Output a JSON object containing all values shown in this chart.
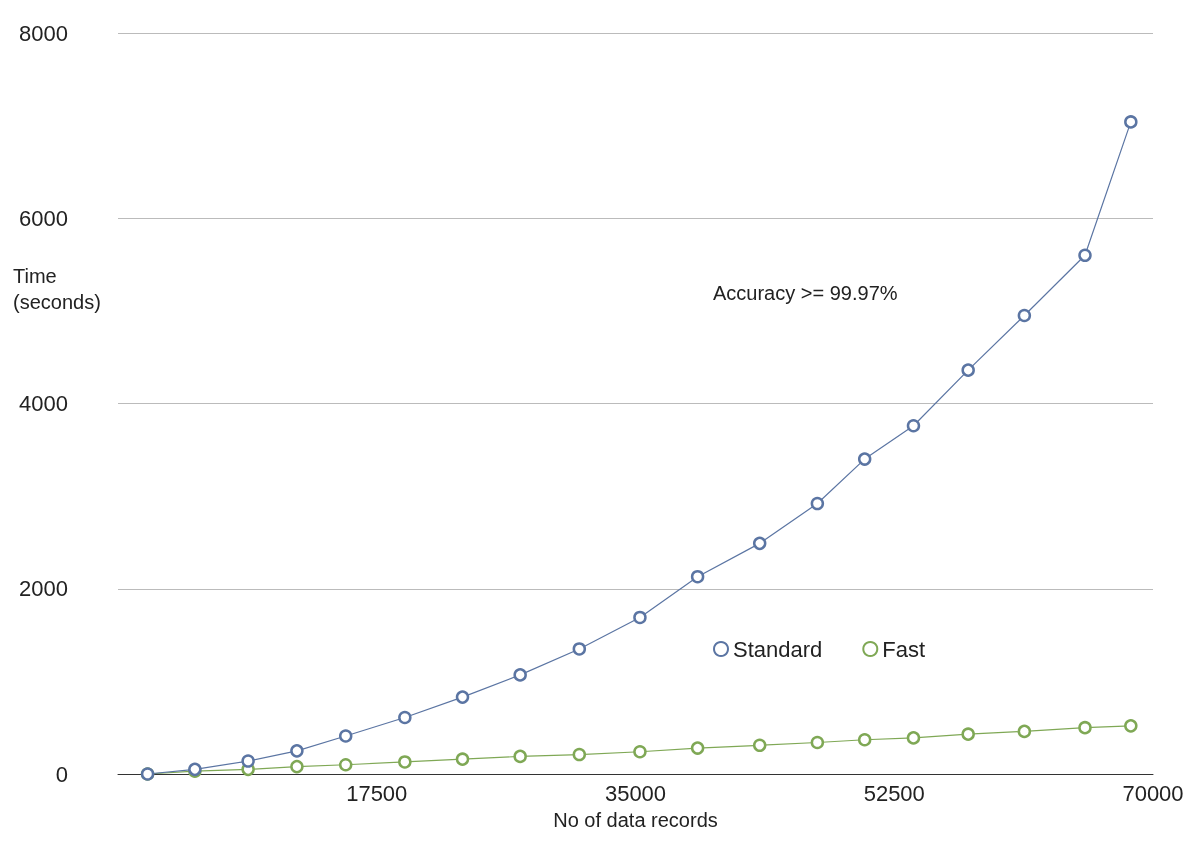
{
  "chart_data": {
    "type": "line",
    "xlabel": "No of data records",
    "ylabel": "Time\n(seconds)",
    "annotations": [
      "Accuracy >= 99.97%"
    ],
    "xlim": [
      0,
      70000
    ],
    "xticks": [
      17500,
      35000,
      52500,
      70000
    ],
    "ylim": [
      0,
      8000
    ],
    "yticks": [
      0,
      2000,
      4000,
      6000,
      8000
    ],
    "grid": "y",
    "legend": "right",
    "marker": "circle",
    "line_style": "solid",
    "x": [
      2000,
      5200,
      8800,
      12100,
      15400,
      19400,
      23300,
      27200,
      31200,
      35300,
      39200,
      43400,
      47300,
      50500,
      53800,
      57500,
      61300,
      65400,
      68500
    ],
    "series": [
      {
        "name": "Standard",
        "color": "#5b75a3",
        "values": [
          0,
          50,
          140,
          250,
          410,
          610,
          830,
          1070,
          1350,
          1690,
          2130,
          2490,
          2920,
          3400,
          3760,
          4360,
          4950,
          5600,
          7040
        ]
      },
      {
        "name": "Fast",
        "color": "#7fa855",
        "values": [
          0,
          30,
          50,
          80,
          100,
          130,
          160,
          190,
          210,
          240,
          280,
          310,
          340,
          370,
          390,
          430,
          460,
          500,
          520
        ]
      }
    ]
  }
}
